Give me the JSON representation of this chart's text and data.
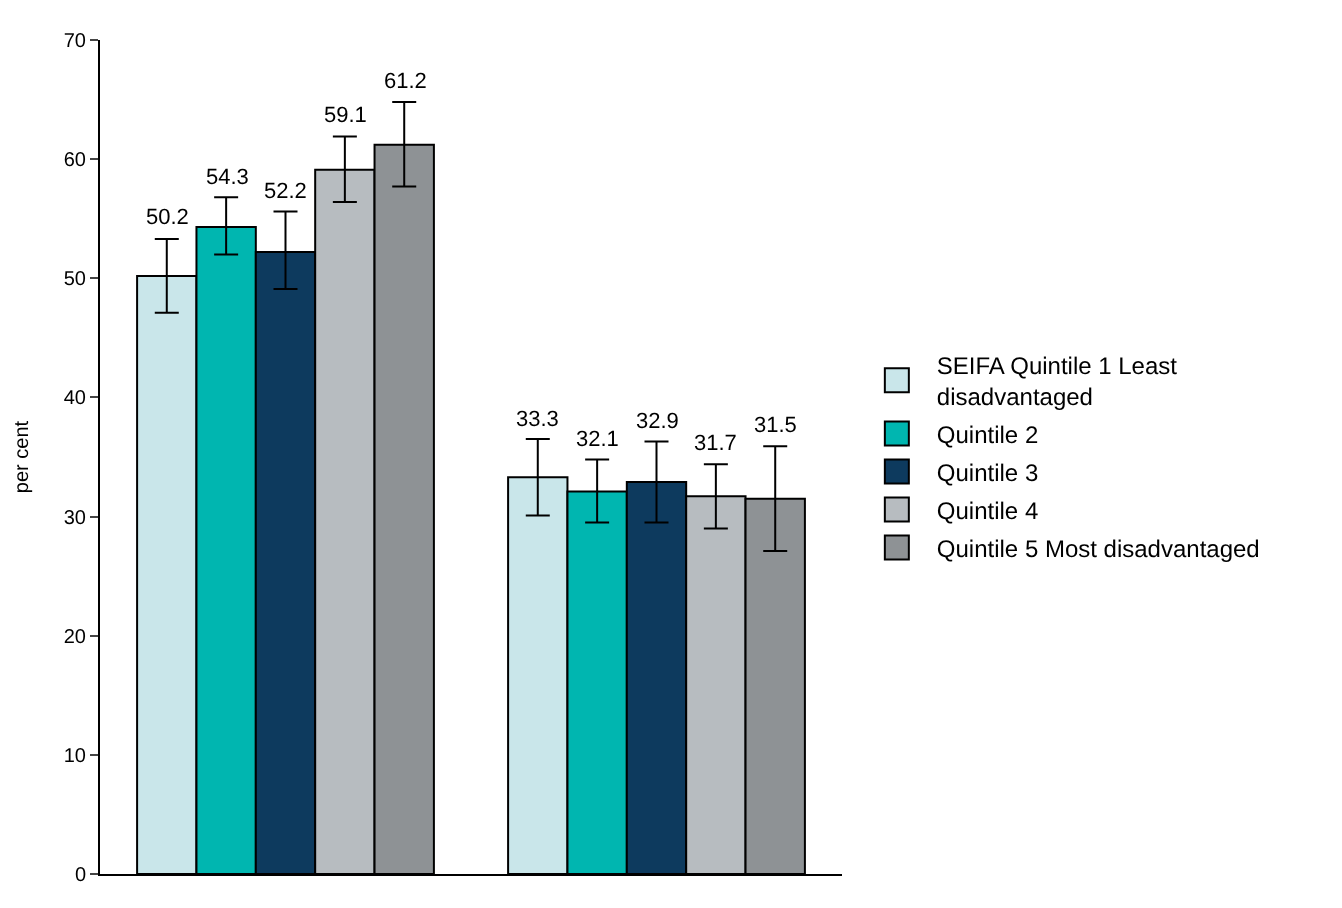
{
  "chart_data": {
    "type": "bar",
    "ylabel": "per cent",
    "categories": [
      null,
      null
    ],
    "series": [
      {
        "name": "SEIFA Quintile 1 Least disadvantaged",
        "color": "#c9e6ea",
        "values": [
          50.2,
          33.3
        ],
        "errors": [
          [
            47.1,
            53.3
          ],
          [
            30.1,
            36.5
          ]
        ]
      },
      {
        "name": "Quintile 2",
        "color": "#00b6b0",
        "values": [
          54.3,
          32.1
        ],
        "errors": [
          [
            52.0,
            56.8
          ],
          [
            29.5,
            34.8
          ]
        ]
      },
      {
        "name": "Quintile 3",
        "color": "#0d3a5e",
        "values": [
          52.2,
          32.9
        ],
        "errors": [
          [
            49.1,
            55.6
          ],
          [
            29.5,
            36.3
          ]
        ]
      },
      {
        "name": "Quintile 4",
        "color": "#b7bcc0",
        "values": [
          59.1,
          31.7
        ],
        "errors": [
          [
            56.4,
            61.9
          ],
          [
            29.0,
            34.4
          ]
        ]
      },
      {
        "name": "Quintile 5 Most disadvantaged",
        "color": "#8e9295",
        "values": [
          61.2,
          31.5
        ],
        "errors": [
          [
            57.7,
            64.8
          ],
          [
            27.1,
            35.9
          ]
        ]
      }
    ],
    "ylim": [
      0,
      70
    ],
    "yticks": [
      0,
      10,
      20,
      30,
      40,
      50,
      60,
      70
    ],
    "legend": "right",
    "data_labels": true
  }
}
